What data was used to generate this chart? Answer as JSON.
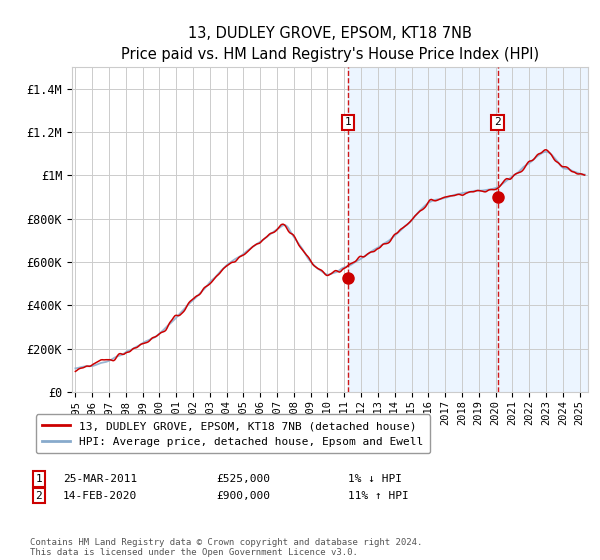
{
  "title": "13, DUDLEY GROVE, EPSOM, KT18 7NB",
  "subtitle": "Price paid vs. HM Land Registry's House Price Index (HPI)",
  "ylabel_ticks": [
    "£0",
    "£200K",
    "£400K",
    "£600K",
    "£800K",
    "£1M",
    "£1.2M",
    "£1.4M"
  ],
  "ylim": [
    0,
    1500000
  ],
  "yticks": [
    0,
    200000,
    400000,
    600000,
    800000,
    1000000,
    1200000,
    1400000
  ],
  "xlim_start": 1994.8,
  "xlim_end": 2025.5,
  "transaction1": {
    "date_x": 2011.22,
    "price": 525000,
    "label": "1",
    "date_str": "25-MAR-2011",
    "price_str": "£525,000",
    "hpi_str": "1% ↓ HPI"
  },
  "transaction2": {
    "date_x": 2020.12,
    "price": 900000,
    "label": "2",
    "date_str": "14-FEB-2020",
    "price_str": "£900,000",
    "hpi_str": "11% ↑ HPI"
  },
  "legend_line1": "13, DUDLEY GROVE, EPSOM, KT18 7NB (detached house)",
  "legend_line2": "HPI: Average price, detached house, Epsom and Ewell",
  "footer": "Contains HM Land Registry data © Crown copyright and database right 2024.\nThis data is licensed under the Open Government Licence v3.0.",
  "line_color_red": "#cc0000",
  "line_color_blue": "#88aacc",
  "bg_shade_color": "#ddeeff",
  "grid_color": "#cccccc",
  "vline_color": "#cc0000",
  "box_color": "#cc0000",
  "xtick_years": [
    1995,
    1996,
    1997,
    1998,
    1999,
    2000,
    2001,
    2002,
    2003,
    2004,
    2005,
    2006,
    2007,
    2008,
    2009,
    2010,
    2011,
    2012,
    2013,
    2014,
    2015,
    2016,
    2017,
    2018,
    2019,
    2020,
    2021,
    2022,
    2023,
    2024,
    2025
  ]
}
